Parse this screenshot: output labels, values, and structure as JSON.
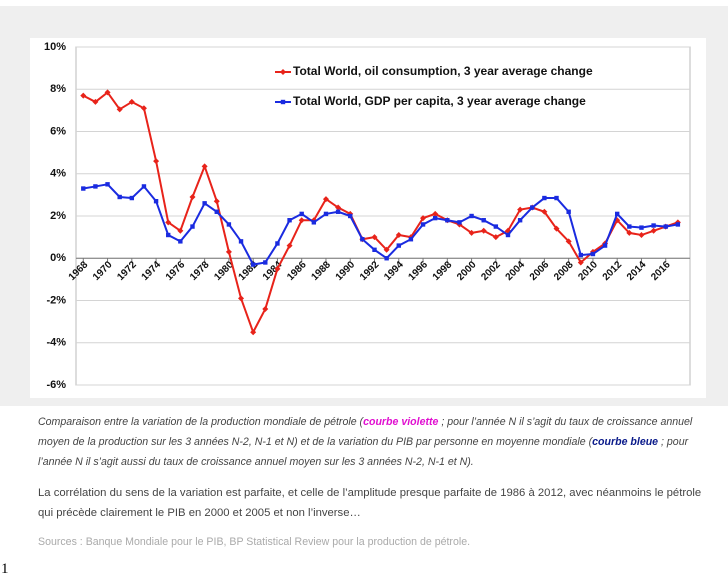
{
  "chart_data": {
    "type": "line",
    "x": [
      1968,
      1969,
      1970,
      1971,
      1972,
      1973,
      1974,
      1975,
      1976,
      1977,
      1978,
      1979,
      1980,
      1981,
      1982,
      1983,
      1984,
      1985,
      1986,
      1987,
      1988,
      1989,
      1990,
      1991,
      1992,
      1993,
      1994,
      1995,
      1996,
      1997,
      1998,
      1999,
      2000,
      2001,
      2002,
      2003,
      2004,
      2005,
      2006,
      2007,
      2008,
      2009,
      2010,
      2011,
      2012,
      2013,
      2014,
      2015,
      2016,
      2017
    ],
    "series": [
      {
        "name": "Total World, oil consumption, 3 year average change",
        "color": "#e8231a",
        "marker": "diamond",
        "values": [
          7.7,
          7.4,
          7.85,
          7.05,
          7.4,
          7.1,
          4.6,
          1.7,
          1.3,
          2.9,
          4.35,
          2.7,
          0.3,
          -1.9,
          -3.5,
          -2.4,
          -0.5,
          0.6,
          1.8,
          1.8,
          2.8,
          2.4,
          2.1,
          0.9,
          1.0,
          0.4,
          1.1,
          1.0,
          1.9,
          2.1,
          1.8,
          1.6,
          1.2,
          1.3,
          1.0,
          1.3,
          2.3,
          2.4,
          2.2,
          1.4,
          0.8,
          -0.2,
          0.3,
          0.7,
          1.8,
          1.2,
          1.1,
          1.3,
          1.5,
          1.7
        ]
      },
      {
        "name": "Total World, GDP per capita, 3 year average change",
        "color": "#1a2be0",
        "marker": "square",
        "values": [
          3.3,
          3.4,
          3.5,
          2.9,
          2.85,
          3.4,
          2.7,
          1.1,
          0.8,
          1.5,
          2.6,
          2.2,
          1.6,
          0.8,
          -0.3,
          -0.2,
          0.7,
          1.8,
          2.1,
          1.7,
          2.1,
          2.2,
          2.0,
          0.9,
          0.4,
          0.0,
          0.6,
          0.9,
          1.6,
          1.9,
          1.8,
          1.7,
          2.0,
          1.8,
          1.5,
          1.1,
          1.8,
          2.4,
          2.85,
          2.85,
          2.2,
          0.15,
          0.2,
          0.6,
          2.1,
          1.5,
          1.45,
          1.55,
          1.5,
          1.6
        ]
      }
    ],
    "xlim": [
      1967.4,
      2018
    ],
    "xticks": [
      1968,
      1970,
      1972,
      1974,
      1976,
      1978,
      1980,
      1982,
      1984,
      1986,
      1988,
      1990,
      1992,
      1994,
      1996,
      1998,
      2000,
      2002,
      2004,
      2006,
      2008,
      2010,
      2012,
      2014,
      2016
    ],
    "ylim": [
      -6,
      10
    ],
    "yticks": [
      {
        "value": -6,
        "label": "-6%"
      },
      {
        "value": -4,
        "label": "-4%"
      },
      {
        "value": -2,
        "label": "-2%"
      },
      {
        "value": 0,
        "label": "0%"
      },
      {
        "value": 2,
        "label": "2%"
      },
      {
        "value": 4,
        "label": "4%"
      },
      {
        "value": 6,
        "label": "6%"
      },
      {
        "value": 8,
        "label": "8%"
      },
      {
        "value": 10,
        "label": "10%"
      }
    ],
    "grid": true
  },
  "caption": {
    "parts": [
      "Comparaison entre la variation de la production mondiale de pétrole (",
      "courbe violette",
      " ; pour l’année N il s’agit du taux de croissance annuel moyen de la production sur les 3 années N-2, N-1 et N) et de la variation du PIB par personne en moyenne mondiale (",
      "courbe bleue",
      " ; pour l’année N il s’agit aussi du taux de croissance annuel moyen sur les 3 années N-2, N-1 et N)."
    ]
  },
  "comment": "La corrélation du sens de la variation est parfaite, et celle de l’amplitude presque parfaite de 1986 à 2012, avec néanmoins le pétrole qui précède clairement le PIB en 2000 et 2005 et non l’inverse…",
  "sources": "Sources : Banque Mondiale pour le PIB, BP Statistical Review pour la production de pétrole.",
  "page_number": "1"
}
